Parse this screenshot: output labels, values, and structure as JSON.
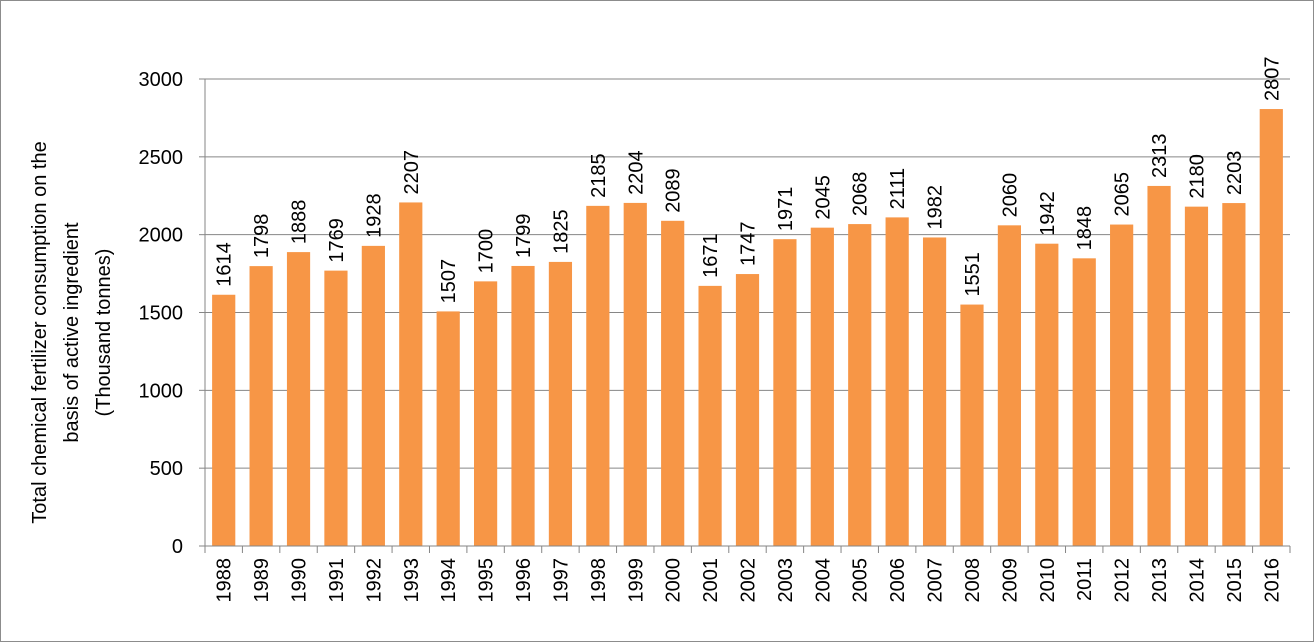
{
  "chart_data": {
    "type": "bar",
    "ylabel": "Total chemical fertilizer consumption on the basis of active ingredient (Thousand tonnes)",
    "ylabel_lines": [
      "Total chemical fertilizer consumption on the",
      "basis of active ingredient",
      "(Thousand tonnes)"
    ],
    "xlabel": "",
    "ylim": [
      0,
      3000
    ],
    "yticks": [
      0,
      500,
      1000,
      1500,
      2000,
      2500,
      3000
    ],
    "categories": [
      "1988",
      "1989",
      "1990",
      "1991",
      "1992",
      "1993",
      "1994",
      "1995",
      "1996",
      "1997",
      "1998",
      "1999",
      "2000",
      "2001",
      "2002",
      "2003",
      "2004",
      "2005",
      "2006",
      "2007",
      "2008",
      "2009",
      "2010",
      "2011",
      "2012",
      "2013",
      "2014",
      "2015",
      "2016"
    ],
    "values": [
      1614,
      1798,
      1888,
      1769,
      1928,
      2207,
      1507,
      1700,
      1799,
      1825,
      2185,
      2204,
      2089,
      1671,
      1747,
      1971,
      2045,
      2068,
      2111,
      1982,
      1551,
      2060,
      1942,
      1848,
      2065,
      2313,
      2180,
      2203,
      2807
    ],
    "bar_color": "#F79646",
    "grid": true,
    "legend": "none"
  }
}
